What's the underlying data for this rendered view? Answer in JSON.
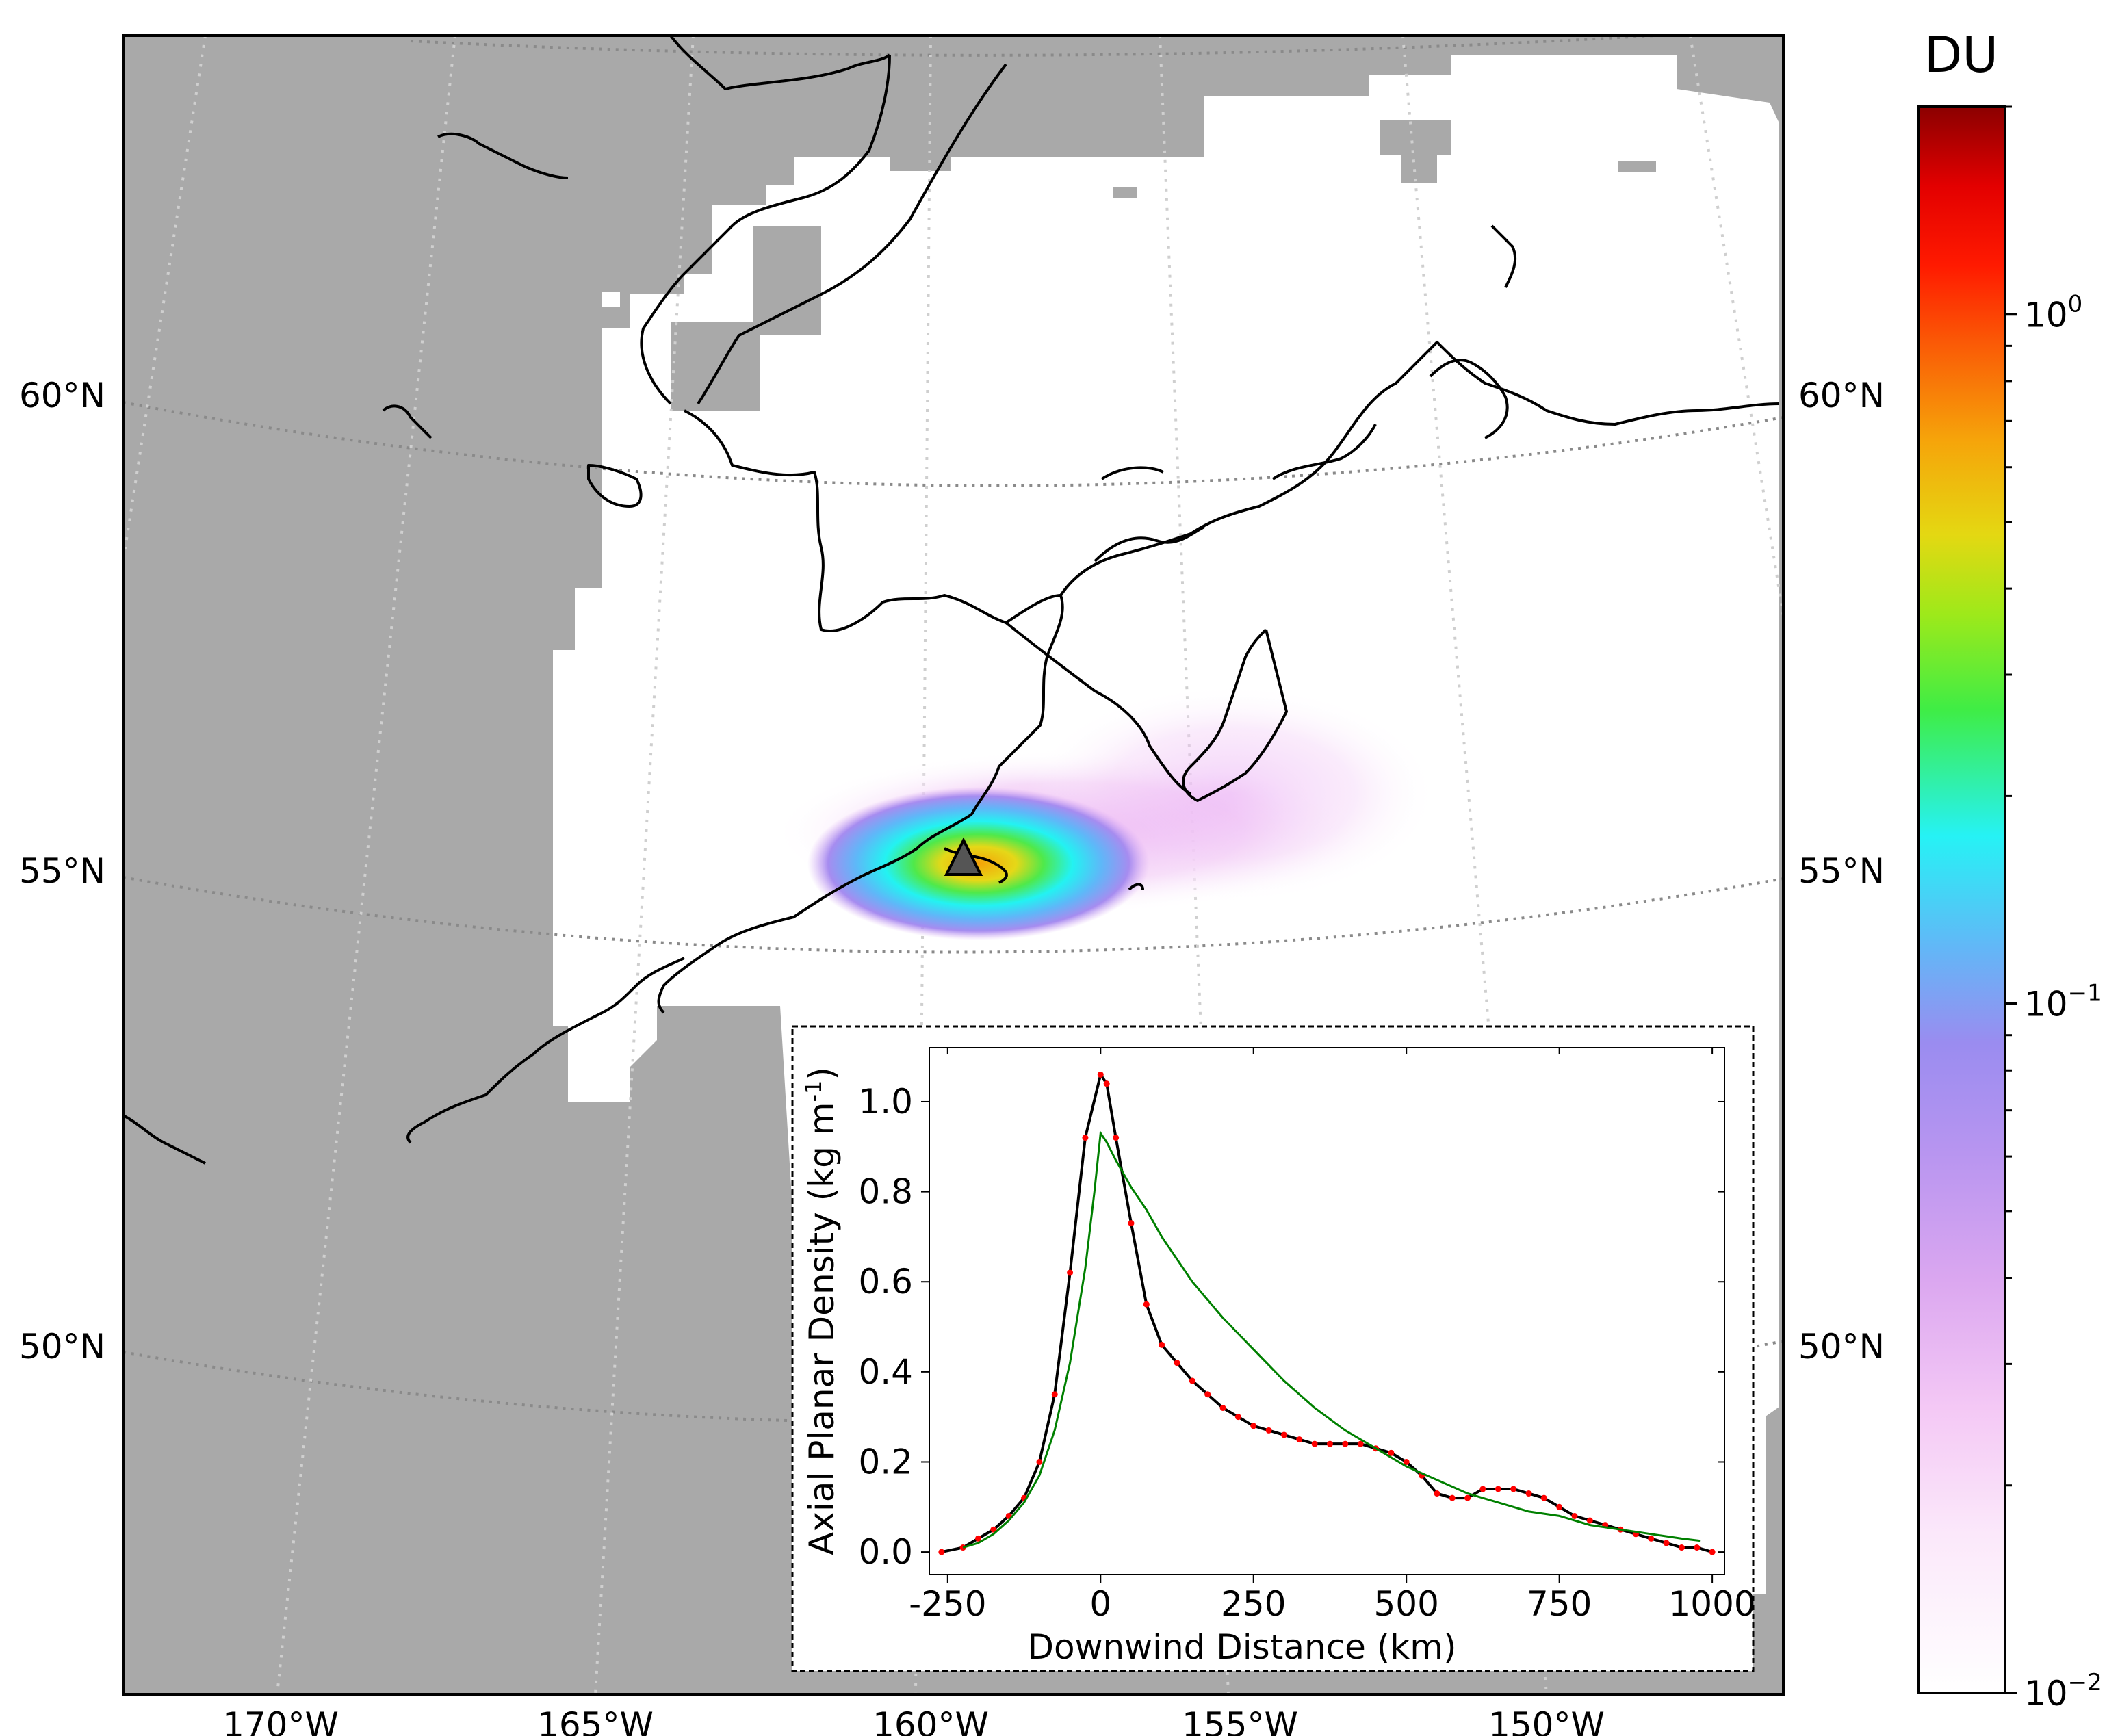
{
  "map": {
    "lat_labels": [
      "60°N",
      "55°N",
      "50°N"
    ],
    "lon_labels": [
      "170°W",
      "165°W",
      "160°W",
      "155°W",
      "150°W"
    ],
    "volcano_marker": "volcano-triangle-icon",
    "colors": {
      "no_data": "#a9a9a9",
      "coastline": "#000000",
      "graticule": "#bbbbbb"
    }
  },
  "colorbar": {
    "title": "DU",
    "tick_labels": [
      {
        "base": "10",
        "exp": "0",
        "value": 1.0
      },
      {
        "base": "10",
        "exp": "−1",
        "value": 0.1
      },
      {
        "base": "10",
        "exp": "−2",
        "value": 0.01
      }
    ],
    "range": [
      0.01,
      2.0
    ],
    "scale": "log",
    "colors": [
      "#ffffff",
      "#f7d5f5",
      "#dca6f0",
      "#a48cf0",
      "#62b7f7",
      "#22f4f5",
      "#3bee50",
      "#9be81a",
      "#e7d911",
      "#f7a50a",
      "#fa5c06",
      "#ff0000",
      "#e00000",
      "#8b0000"
    ]
  },
  "chart_data": {
    "type": "line",
    "xlabel": "Downwind Distance (km)",
    "ylabel_text": "Axial Planar Density (kg m",
    "ylabel_sup": "-1",
    "ylabel_close": ")",
    "xlim": [
      -280,
      1020
    ],
    "ylim": [
      -0.05,
      1.12
    ],
    "xticks": [
      {
        "value": -250,
        "label": "-250"
      },
      {
        "value": 0,
        "label": "0"
      },
      {
        "value": 250,
        "label": "250"
      },
      {
        "value": 500,
        "label": "500"
      },
      {
        "value": 750,
        "label": "750"
      },
      {
        "value": 1000,
        "label": "1000"
      }
    ],
    "yticks": [
      {
        "value": 0.0,
        "label": "0.0"
      },
      {
        "value": 0.2,
        "label": "0.2"
      },
      {
        "value": 0.4,
        "label": "0.4"
      },
      {
        "value": 0.6,
        "label": "0.6"
      },
      {
        "value": 0.8,
        "label": "0.8"
      },
      {
        "value": 1.0,
        "label": "1.0"
      }
    ],
    "series": [
      {
        "color": "#000000",
        "markers": true,
        "marker_color": "#ff0000",
        "x": [
          -260,
          -225,
          -200,
          -175,
          -150,
          -125,
          -100,
          -75,
          -50,
          -25,
          0,
          10,
          25,
          50,
          75,
          100,
          125,
          150,
          175,
          200,
          225,
          250,
          275,
          300,
          325,
          350,
          375,
          400,
          425,
          450,
          475,
          500,
          525,
          550,
          575,
          600,
          625,
          650,
          675,
          700,
          725,
          750,
          775,
          800,
          825,
          850,
          875,
          900,
          925,
          950,
          975,
          1000
        ],
        "y": [
          0.0,
          0.01,
          0.03,
          0.05,
          0.08,
          0.12,
          0.2,
          0.35,
          0.62,
          0.92,
          1.06,
          1.04,
          0.92,
          0.73,
          0.55,
          0.46,
          0.42,
          0.38,
          0.35,
          0.32,
          0.3,
          0.28,
          0.27,
          0.26,
          0.25,
          0.24,
          0.24,
          0.24,
          0.24,
          0.23,
          0.22,
          0.2,
          0.17,
          0.13,
          0.12,
          0.12,
          0.14,
          0.14,
          0.14,
          0.13,
          0.12,
          0.1,
          0.08,
          0.07,
          0.06,
          0.05,
          0.04,
          0.03,
          0.02,
          0.01,
          0.01,
          0.0
        ]
      },
      {
        "color": "#008000",
        "markers": false,
        "x": [
          -225,
          -200,
          -175,
          -150,
          -125,
          -100,
          -75,
          -50,
          -25,
          -10,
          0,
          10,
          25,
          50,
          75,
          100,
          150,
          200,
          250,
          300,
          350,
          400,
          450,
          500,
          550,
          600,
          650,
          700,
          750,
          800,
          850,
          900,
          950,
          980
        ],
        "y": [
          0.01,
          0.02,
          0.04,
          0.07,
          0.11,
          0.17,
          0.27,
          0.42,
          0.63,
          0.8,
          0.93,
          0.91,
          0.87,
          0.81,
          0.76,
          0.7,
          0.6,
          0.52,
          0.45,
          0.38,
          0.32,
          0.27,
          0.23,
          0.19,
          0.16,
          0.13,
          0.11,
          0.09,
          0.08,
          0.06,
          0.05,
          0.04,
          0.03,
          0.025
        ]
      }
    ]
  }
}
